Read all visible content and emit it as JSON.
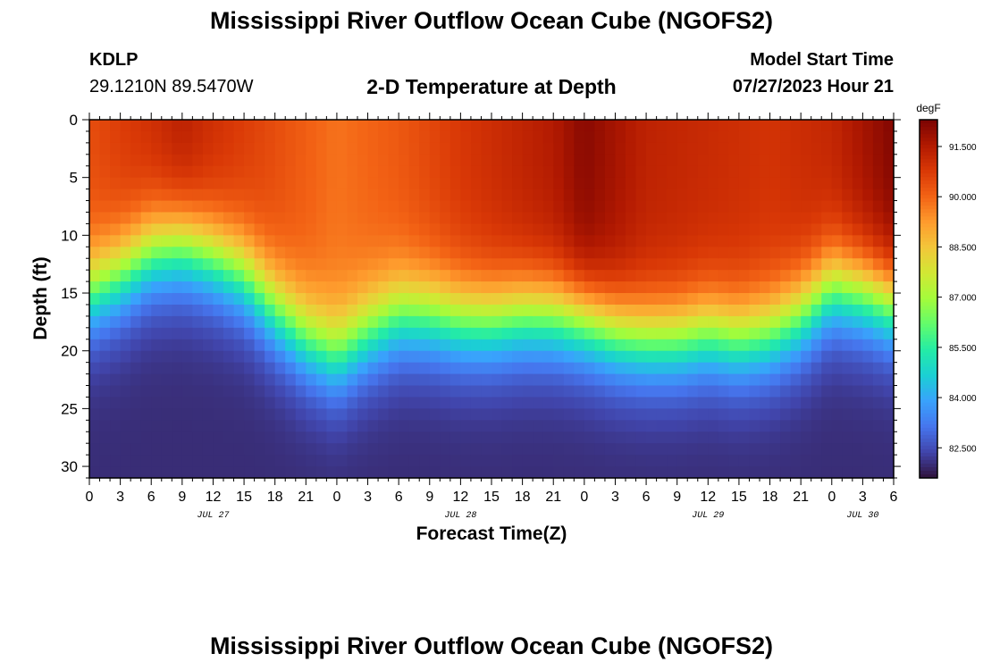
{
  "header": {
    "title": "Mississippi River Outflow Ocean Cube (NGOFS2)",
    "station_id": "KDLP",
    "station_coords": "29.1210N  89.5470W",
    "subtitle": "2-D Temperature at Depth",
    "model_start_label": "Model Start Time",
    "model_start_value": "07/27/2023 Hour 21"
  },
  "footer": {
    "title": "Mississippi River Outflow Ocean Cube (NGOFS2)"
  },
  "chart_data": {
    "type": "heatmap",
    "title": "2-D Temperature at Depth",
    "xlabel": "Forecast Time(Z)",
    "ylabel": "Depth (ft)",
    "x_tick_labels": [
      "0",
      "3",
      "6",
      "9",
      "12",
      "15",
      "18",
      "21",
      "0",
      "3",
      "6",
      "9",
      "12",
      "15",
      "18",
      "21",
      "0",
      "3",
      "6",
      "9",
      "12",
      "15",
      "18",
      "21",
      "0",
      "3",
      "6"
    ],
    "date_labels": [
      {
        "label": "JUL 27",
        "hour": 12
      },
      {
        "label": "JUL 28",
        "hour": 36
      },
      {
        "label": "JUL 29",
        "hour": 60
      },
      {
        "label": "JUL 30",
        "hour": 75
      }
    ],
    "x_range_hours": [
      0,
      78
    ],
    "y_ticks": [
      0,
      5,
      10,
      15,
      20,
      25,
      30
    ],
    "y_range_ft": [
      0,
      31
    ],
    "colorbar": {
      "unit": "degF",
      "ticks": [
        "91.500",
        "90.000",
        "88.500",
        "87.000",
        "85.500",
        "84.000",
        "82.500"
      ],
      "tick_values": [
        91.5,
        90.0,
        88.5,
        87.0,
        85.5,
        84.0,
        82.5
      ],
      "range": [
        81.6,
        92.3
      ],
      "colors": [
        "#30123b",
        "#4145ab",
        "#4675ed",
        "#39a2fc",
        "#1bcfd4",
        "#24eca6",
        "#61fc6c",
        "#a4fc3b",
        "#d1e834",
        "#f3c63a",
        "#fe9b2d",
        "#f36315",
        "#d93806",
        "#b11901",
        "#7a0402"
      ]
    },
    "mixed_layer_depth_ft": [
      {
        "hour": 0,
        "depth": 15.0
      },
      {
        "hour": 3,
        "depth": 13.5
      },
      {
        "hour": 6,
        "depth": 11.5
      },
      {
        "hour": 9,
        "depth": 11.0
      },
      {
        "hour": 12,
        "depth": 12.0
      },
      {
        "hour": 15,
        "depth": 13.5
      },
      {
        "hour": 18,
        "depth": 16.5
      },
      {
        "hour": 21,
        "depth": 19.0
      },
      {
        "hour": 24,
        "depth": 20.5
      },
      {
        "hour": 27,
        "depth": 18.5
      },
      {
        "hour": 30,
        "depth": 17.0
      },
      {
        "hour": 33,
        "depth": 17.0
      },
      {
        "hour": 36,
        "depth": 17.5
      },
      {
        "hour": 39,
        "depth": 17.5
      },
      {
        "hour": 42,
        "depth": 17.0
      },
      {
        "hour": 45,
        "depth": 17.0
      },
      {
        "hour": 48,
        "depth": 17.5
      },
      {
        "hour": 51,
        "depth": 18.5
      },
      {
        "hour": 54,
        "depth": 19.0
      },
      {
        "hour": 57,
        "depth": 19.0
      },
      {
        "hour": 60,
        "depth": 18.5
      },
      {
        "hour": 63,
        "depth": 19.0
      },
      {
        "hour": 66,
        "depth": 18.5
      },
      {
        "hour": 69,
        "depth": 17.0
      },
      {
        "hour": 72,
        "depth": 14.5
      },
      {
        "hour": 75,
        "depth": 15.0
      },
      {
        "hour": 78,
        "depth": 16.0
      }
    ],
    "surface_temp_degF": [
      {
        "hour": 0,
        "temp": 90.4
      },
      {
        "hour": 6,
        "temp": 91.0
      },
      {
        "hour": 9,
        "temp": 91.4
      },
      {
        "hour": 12,
        "temp": 91.0
      },
      {
        "hour": 18,
        "temp": 90.4
      },
      {
        "hour": 24,
        "temp": 89.8
      },
      {
        "hour": 30,
        "temp": 90.2
      },
      {
        "hour": 36,
        "temp": 90.8
      },
      {
        "hour": 45,
        "temp": 91.5
      },
      {
        "hour": 48,
        "temp": 92.1
      },
      {
        "hour": 54,
        "temp": 91.3
      },
      {
        "hour": 66,
        "temp": 90.9
      },
      {
        "hour": 72,
        "temp": 91.2
      },
      {
        "hour": 78,
        "temp": 92.2
      }
    ],
    "bottom_temp_degF": 82.0
  }
}
